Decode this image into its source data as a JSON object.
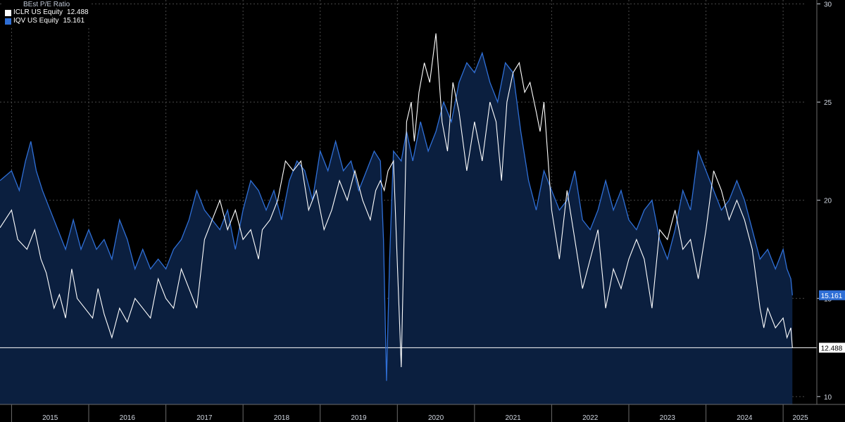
{
  "chart_data": {
    "type": "line",
    "title": "BEst P/E Ratio",
    "ylim": [
      9.6,
      30.2
    ],
    "yticks": [
      10,
      15,
      20,
      25,
      30
    ],
    "x_range": [
      2014.85,
      2025.3
    ],
    "xticks": [
      "2015",
      "2016",
      "2017",
      "2018",
      "2019",
      "2020",
      "2021",
      "2022",
      "2023",
      "2024",
      "2025"
    ],
    "reference_line": 12.488,
    "colors": {
      "background": "#000000",
      "iclr": "#ffffff",
      "iqv": "#2f6fd6",
      "area": "#0b1f3f",
      "grid": "#4a4a4a",
      "flag_iqv": "#2f6fd6",
      "flag_iclr": "#ffffff"
    },
    "series": [
      {
        "name": "ICLR US Equity",
        "last": "12.488",
        "x": [
          2014.85,
          2015.0,
          2015.08,
          2015.2,
          2015.3,
          2015.38,
          2015.45,
          2015.55,
          2015.62,
          2015.7,
          2015.78,
          2015.85,
          2015.95,
          2016.05,
          2016.12,
          2016.2,
          2016.3,
          2016.4,
          2016.5,
          2016.6,
          2016.7,
          2016.8,
          2016.9,
          2017.0,
          2017.1,
          2017.2,
          2017.3,
          2017.4,
          2017.5,
          2017.6,
          2017.7,
          2017.8,
          2017.9,
          2018.0,
          2018.1,
          2018.2,
          2018.25,
          2018.35,
          2018.45,
          2018.55,
          2018.65,
          2018.75,
          2018.85,
          2018.95,
          2019.05,
          2019.15,
          2019.25,
          2019.35,
          2019.45,
          2019.55,
          2019.65,
          2019.72,
          2019.78,
          2019.83,
          2019.88,
          2019.95,
          2020.05,
          2020.12,
          2020.18,
          2020.22,
          2020.28,
          2020.35,
          2020.42,
          2020.5,
          2020.58,
          2020.65,
          2020.72,
          2020.8,
          2020.9,
          2021.0,
          2021.1,
          2021.2,
          2021.28,
          2021.35,
          2021.42,
          2021.5,
          2021.58,
          2021.65,
          2021.72,
          2021.8,
          2021.85,
          2021.9,
          2022.0,
          2022.1,
          2022.2,
          2022.3,
          2022.4,
          2022.5,
          2022.6,
          2022.7,
          2022.8,
          2022.9,
          2023.0,
          2023.1,
          2023.2,
          2023.3,
          2023.4,
          2023.5,
          2023.6,
          2023.7,
          2023.8,
          2023.9,
          2024.0,
          2024.1,
          2024.2,
          2024.3,
          2024.4,
          2024.5,
          2024.6,
          2024.65,
          2024.7,
          2024.75,
          2024.8,
          2024.9,
          2025.0,
          2025.05,
          2025.1,
          2025.12
        ],
        "y": [
          18.6,
          19.5,
          18.0,
          17.5,
          18.5,
          17.0,
          16.3,
          14.5,
          15.2,
          14.0,
          16.5,
          15.0,
          14.5,
          14.0,
          15.5,
          14.2,
          13.0,
          14.5,
          13.8,
          15.0,
          14.5,
          14.0,
          16.0,
          15.0,
          14.5,
          16.5,
          15.5,
          14.5,
          18.0,
          19.0,
          20.0,
          18.5,
          19.5,
          18.0,
          18.5,
          17.0,
          18.5,
          19.0,
          20.0,
          22.0,
          21.5,
          22.0,
          19.5,
          20.5,
          18.5,
          19.5,
          21.0,
          20.0,
          21.5,
          20.0,
          19.0,
          20.5,
          21.0,
          20.5,
          21.5,
          22.0,
          11.5,
          24.0,
          25.0,
          23.0,
          25.5,
          27.0,
          26.0,
          28.5,
          24.0,
          22.5,
          26.0,
          24.5,
          21.5,
          24.0,
          22.0,
          25.0,
          24.0,
          21.0,
          25.0,
          26.5,
          27.0,
          25.5,
          26.0,
          24.5,
          23.5,
          25.0,
          19.5,
          17.0,
          20.5,
          18.0,
          15.5,
          17.0,
          18.5,
          14.5,
          16.5,
          15.5,
          17.0,
          18.0,
          17.0,
          14.5,
          18.5,
          18.0,
          19.5,
          17.5,
          18.0,
          16.0,
          18.5,
          21.5,
          20.5,
          19.0,
          20.0,
          19.0,
          17.5,
          16.0,
          14.5,
          13.5,
          14.5,
          13.5,
          14.0,
          13.0,
          13.5,
          12.488
        ]
      },
      {
        "name": "IQV US Equity",
        "last": "15.161",
        "x": [
          2014.85,
          2015.0,
          2015.1,
          2015.18,
          2015.25,
          2015.32,
          2015.4,
          2015.5,
          2015.6,
          2015.7,
          2015.8,
          2015.9,
          2016.0,
          2016.1,
          2016.2,
          2016.3,
          2016.4,
          2016.5,
          2016.6,
          2016.7,
          2016.8,
          2016.9,
          2017.0,
          2017.1,
          2017.2,
          2017.3,
          2017.4,
          2017.5,
          2017.6,
          2017.7,
          2017.8,
          2017.9,
          2018.0,
          2018.1,
          2018.2,
          2018.3,
          2018.4,
          2018.5,
          2018.6,
          2018.7,
          2018.8,
          2018.9,
          2019.0,
          2019.1,
          2019.2,
          2019.3,
          2019.4,
          2019.5,
          2019.6,
          2019.7,
          2019.78,
          2019.82,
          2019.86,
          2019.9,
          2019.95,
          2020.05,
          2020.12,
          2020.2,
          2020.3,
          2020.4,
          2020.5,
          2020.6,
          2020.7,
          2020.8,
          2020.9,
          2021.0,
          2021.1,
          2021.2,
          2021.3,
          2021.4,
          2021.5,
          2021.6,
          2021.7,
          2021.8,
          2021.9,
          2022.0,
          2022.1,
          2022.2,
          2022.3,
          2022.4,
          2022.5,
          2022.6,
          2022.7,
          2022.8,
          2022.9,
          2023.0,
          2023.1,
          2023.2,
          2023.3,
          2023.4,
          2023.5,
          2023.6,
          2023.7,
          2023.8,
          2023.9,
          2024.0,
          2024.1,
          2024.2,
          2024.3,
          2024.4,
          2024.5,
          2024.6,
          2024.7,
          2024.8,
          2024.9,
          2025.0,
          2025.05,
          2025.1,
          2025.12
        ],
        "y": [
          21.0,
          21.5,
          20.5,
          22.0,
          23.0,
          21.5,
          20.5,
          19.5,
          18.5,
          17.5,
          19.0,
          17.5,
          18.5,
          17.5,
          18.0,
          17.0,
          19.0,
          18.0,
          16.5,
          17.5,
          16.5,
          17.0,
          16.5,
          17.5,
          18.0,
          19.0,
          20.5,
          19.5,
          19.0,
          18.5,
          19.5,
          17.5,
          19.5,
          21.0,
          20.5,
          19.5,
          20.5,
          19.0,
          21.0,
          22.0,
          21.5,
          20.0,
          22.5,
          21.5,
          23.0,
          21.5,
          22.0,
          20.5,
          21.5,
          22.5,
          22.0,
          18.0,
          10.8,
          17.0,
          22.5,
          22.0,
          23.5,
          22.0,
          24.0,
          22.5,
          23.5,
          25.0,
          24.0,
          26.0,
          27.0,
          26.5,
          27.5,
          26.0,
          25.0,
          27.0,
          26.5,
          23.5,
          21.0,
          19.5,
          21.5,
          20.5,
          19.5,
          20.0,
          21.5,
          19.0,
          18.5,
          19.5,
          21.0,
          19.5,
          20.5,
          19.0,
          18.5,
          19.5,
          20.0,
          18.0,
          17.0,
          18.5,
          20.5,
          19.5,
          22.5,
          21.5,
          20.5,
          19.5,
          20.0,
          21.0,
          20.0,
          18.5,
          17.0,
          17.5,
          16.5,
          17.5,
          16.5,
          16.0,
          15.161
        ]
      }
    ]
  }
}
